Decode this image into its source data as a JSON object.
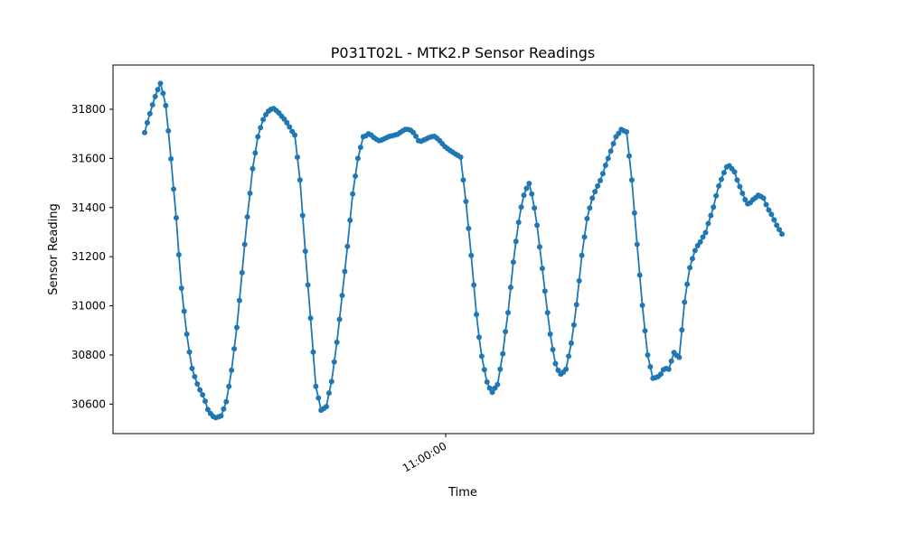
{
  "chart_data": {
    "type": "line",
    "title": "P031T02L - MTK2.P Sensor Readings",
    "xlabel": "Time",
    "ylabel": "Sensor Reading",
    "x_tick_labels": [
      "11:00:00"
    ],
    "y_ticks": [
      30600,
      30800,
      31000,
      31200,
      31400,
      31600,
      31800
    ],
    "ylim": [
      30480,
      31980
    ],
    "grid": false,
    "marker": "circle",
    "color": "#1f77b4",
    "series": [
      {
        "x_index_range": [
          0,
          242
        ],
        "values": [
          31705,
          31745,
          31782,
          31818,
          31852,
          31880,
          31905,
          31865,
          31815,
          31712,
          31598,
          31475,
          31358,
          31208,
          31072,
          30978,
          30885,
          30812,
          30745,
          30712,
          30682,
          30658,
          30638,
          30612,
          30578,
          30562,
          30550,
          30545,
          30548,
          30552,
          30580,
          30610,
          30672,
          30738,
          30825,
          30912,
          31022,
          31135,
          31250,
          31362,
          31458,
          31558,
          31622,
          31688,
          31725,
          31758,
          31778,
          31792,
          31800,
          31803,
          31795,
          31785,
          31772,
          31760,
          31745,
          31728,
          31710,
          31695,
          31605,
          31512,
          31368,
          31222,
          31085,
          30950,
          30812,
          30672,
          30625,
          30575,
          30582,
          30590,
          30645,
          30692,
          30772,
          30852,
          30945,
          31042,
          31140,
          31242,
          31348,
          31455,
          31528,
          31600,
          31645,
          31688,
          31692,
          31700,
          31695,
          31685,
          31678,
          31672,
          31675,
          31680,
          31685,
          31690,
          31692,
          31695,
          31698,
          31705,
          31712,
          31718,
          31718,
          31715,
          31705,
          31690,
          31672,
          31670,
          31675,
          31680,
          31685,
          31688,
          31690,
          31682,
          31672,
          31660,
          31648,
          31640,
          31632,
          31625,
          31618,
          31612,
          31605,
          31512,
          31425,
          31315,
          31205,
          31085,
          30965,
          30872,
          30795,
          30740,
          30690,
          30665,
          30648,
          30665,
          30680,
          30742,
          30805,
          30895,
          30972,
          31075,
          31178,
          31262,
          31340,
          31402,
          31450,
          31478,
          31498,
          31455,
          31398,
          31328,
          31240,
          31152,
          31060,
          30972,
          30885,
          30822,
          30765,
          30738,
          30722,
          30730,
          30742,
          30795,
          30848,
          30922,
          31005,
          31102,
          31205,
          31280,
          31355,
          31398,
          31438,
          31465,
          31488,
          31510,
          31538,
          31572,
          31600,
          31630,
          31660,
          31688,
          31702,
          31718,
          31712,
          31708,
          31610,
          31512,
          31378,
          31250,
          31125,
          31002,
          30898,
          30800,
          30752,
          30705,
          30708,
          30712,
          30722,
          30740,
          30745,
          30742,
          30775,
          30810,
          30798,
          30790,
          30902,
          31015,
          31088,
          31155,
          31192,
          31225,
          31245,
          31260,
          31280,
          31298,
          31335,
          31368,
          31402,
          31448,
          31488,
          31515,
          31542,
          31565,
          31570,
          31558,
          31545,
          31512,
          31485,
          31458,
          31432,
          31415,
          31420,
          31432,
          31440,
          31450,
          31445,
          31438,
          31412,
          31390,
          31372,
          31350,
          31328,
          31310,
          31292
        ]
      }
    ]
  }
}
